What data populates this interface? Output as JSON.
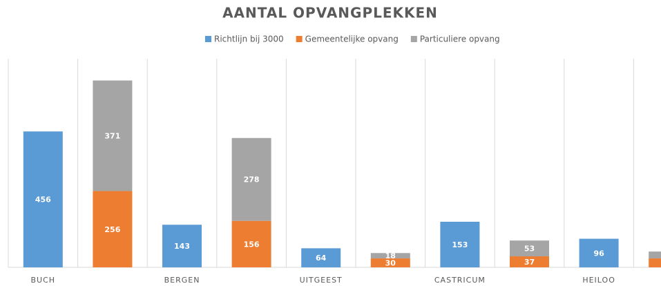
{
  "chart_data": {
    "type": "bar",
    "stacked": true,
    "title": "AANTAL OPVANGPLEKKEN",
    "categories": [
      "BUCH",
      null,
      "BERGEN",
      null,
      "UITGEEST",
      null,
      "CASTRICUM",
      null,
      "HEILOO",
      null
    ],
    "series": [
      {
        "name": "Richtlijn bij 3000",
        "color": "#5b9bd5",
        "values": [
          456,
          null,
          143,
          null,
          64,
          null,
          153,
          null,
          96,
          null
        ]
      },
      {
        "name": "Gemeentelijke opvang",
        "color": "#ed7d31",
        "values": [
          null,
          256,
          null,
          156,
          null,
          30,
          null,
          37,
          null,
          30
        ]
      },
      {
        "name": "Particuliere opvang",
        "color": "#a5a5a5",
        "values": [
          null,
          371,
          null,
          278,
          null,
          18,
          null,
          53,
          null,
          23
        ]
      }
    ],
    "ylim": [
      0,
      700
    ],
    "legend": "top"
  }
}
